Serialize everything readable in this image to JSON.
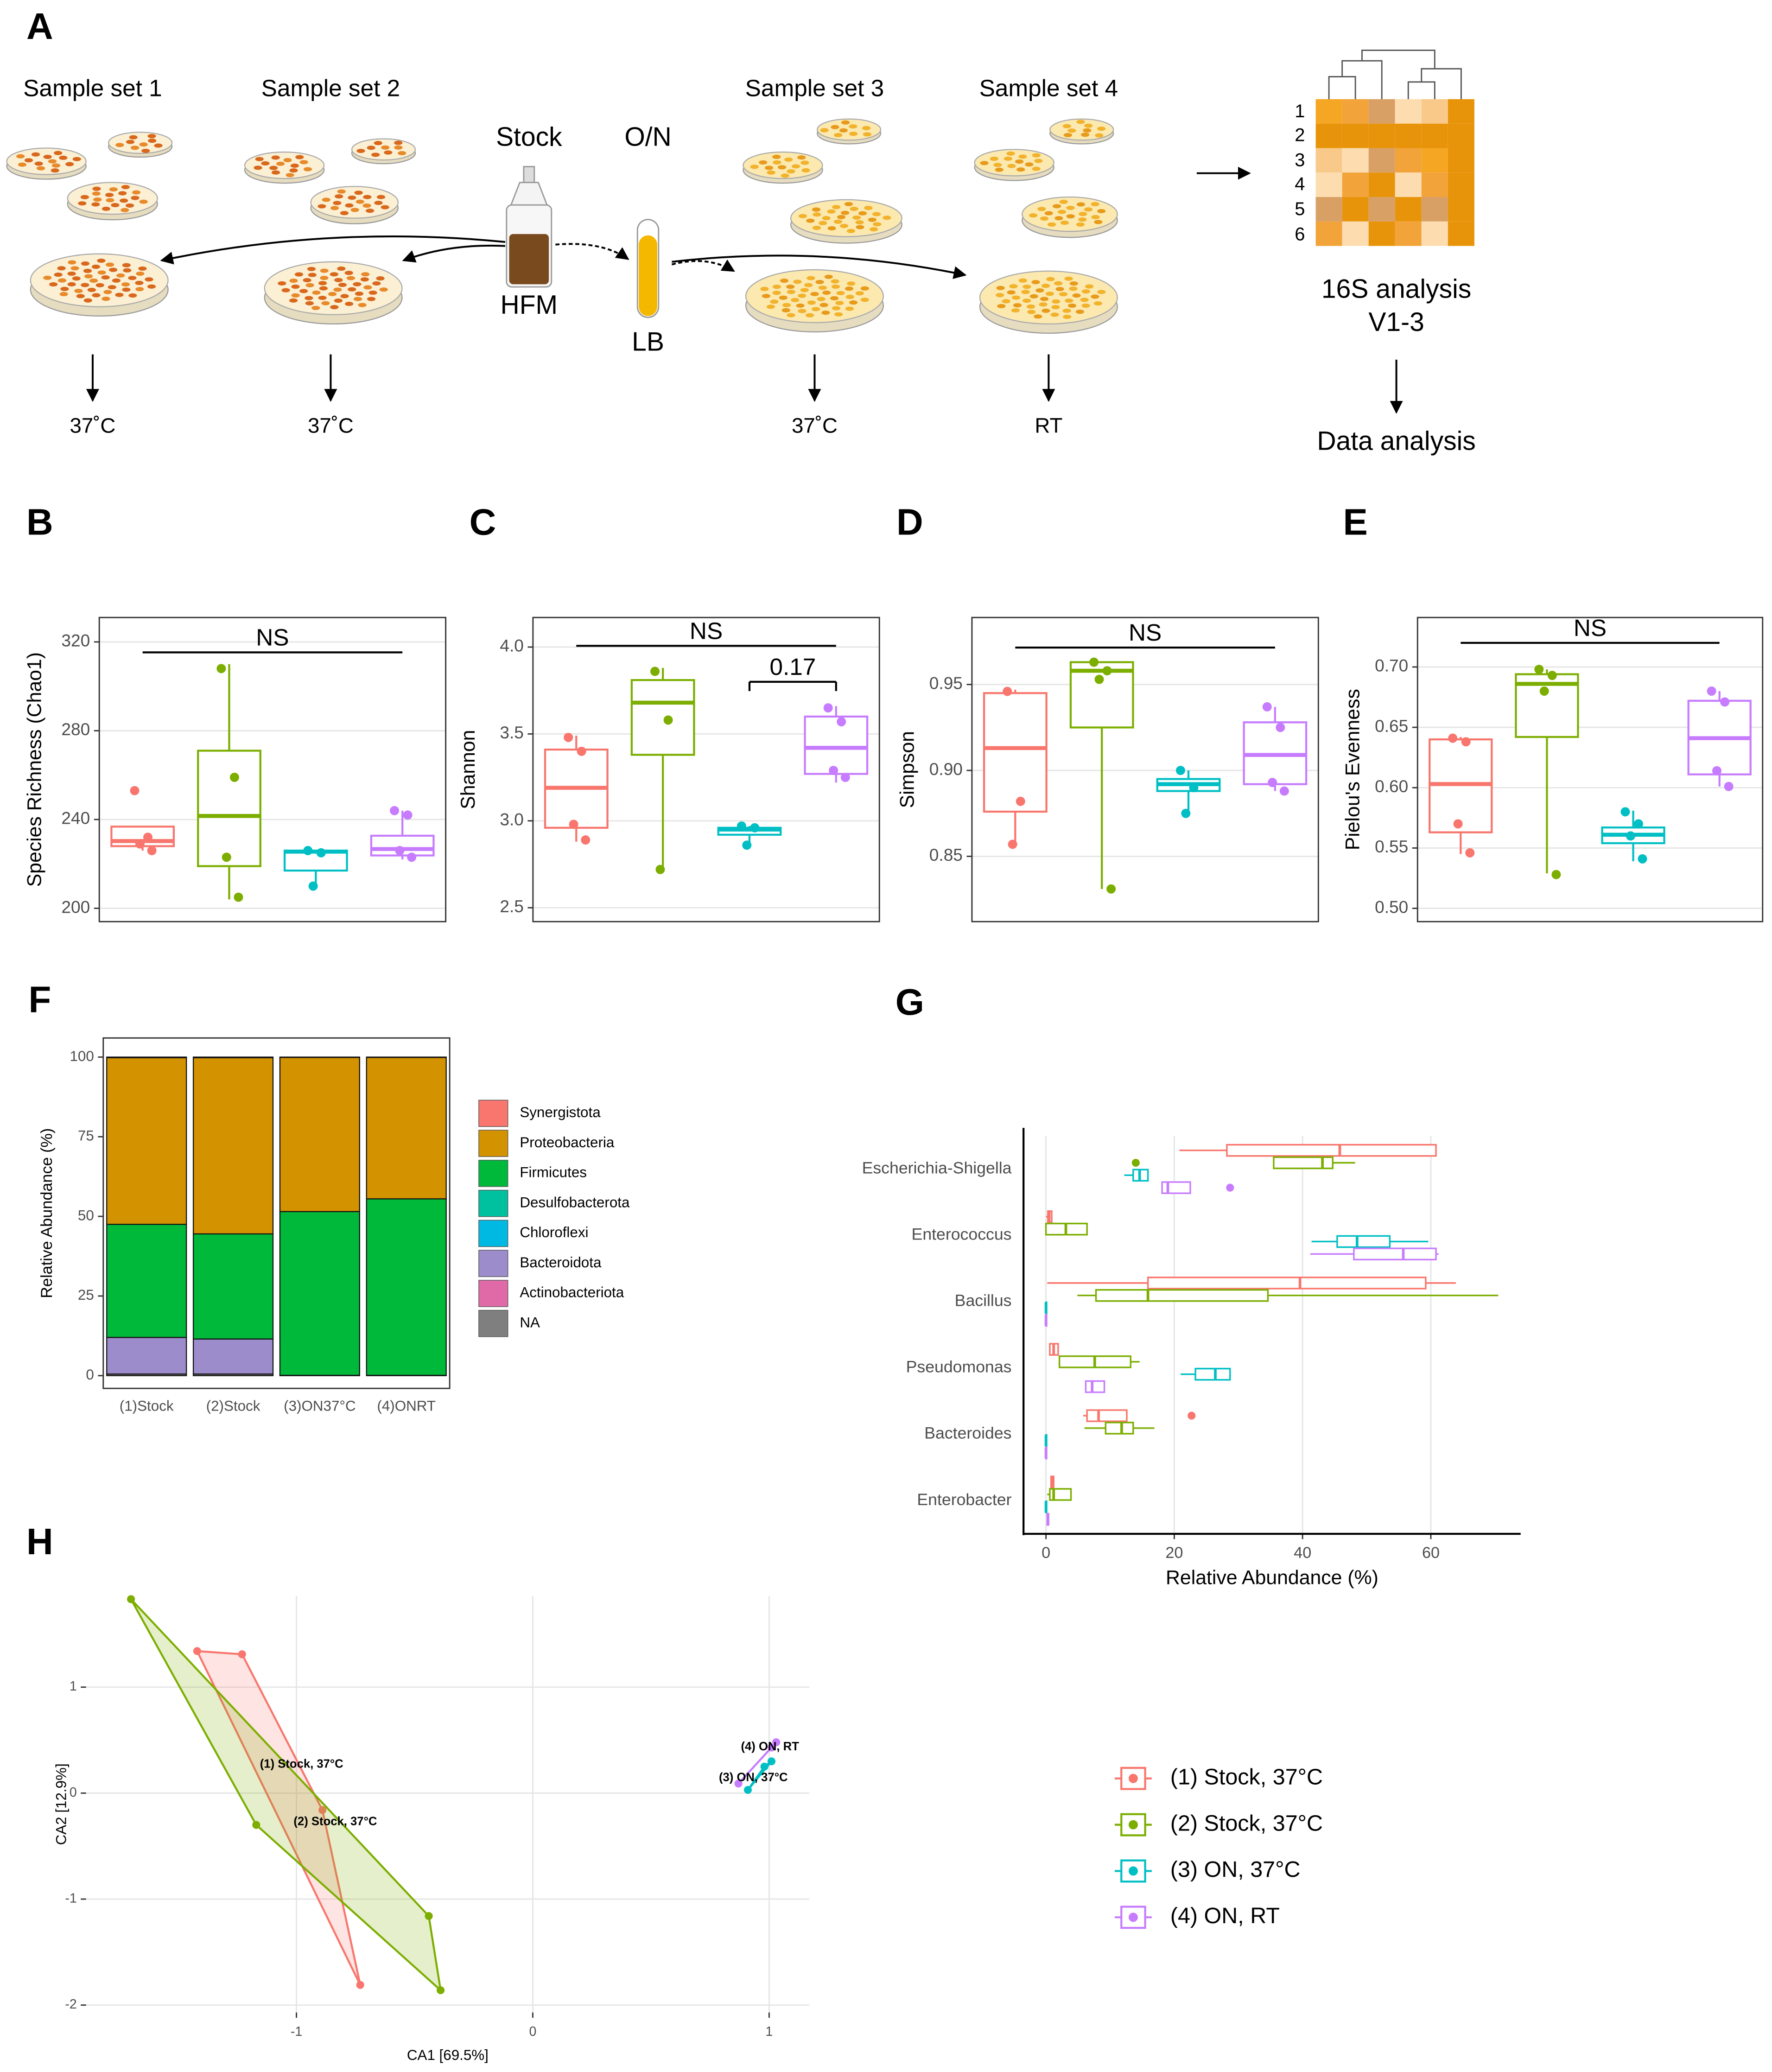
{
  "schematic": {
    "panel": "A",
    "sample_sets": [
      "Sample set 1",
      "Sample set 2",
      "Sample set 3",
      "Sample set 4"
    ],
    "stock": "Stock",
    "overnight": "O/N",
    "stock_medium": "HFM",
    "overnight_medium": "LB",
    "temperatures": [
      "37˚C",
      "37˚C",
      "37˚C",
      "RT"
    ],
    "analysis": "16S analysis",
    "region": "V1-3",
    "heatmap_rows": [
      "1",
      "2",
      "3",
      "4",
      "5",
      "6"
    ],
    "result": "Data analysis"
  },
  "chart_data": [
    {
      "type": "box",
      "panel": "B",
      "ylabel": "Species Richness (Chao1)",
      "ylim": [
        194,
        331
      ],
      "yticks": [
        200,
        240,
        280,
        320
      ],
      "grid": true,
      "series": [
        {
          "color": "#F8766D",
          "q1": 228,
          "median": 230.3,
          "q3": 236.8,
          "whislo": 226,
          "whishi": 237,
          "points": [
            253,
            232,
            229,
            226
          ]
        },
        {
          "color": "#7CAE00",
          "q1": 219,
          "median": 241.6,
          "q3": 271,
          "whislo": 204,
          "whishi": 310,
          "points": [
            308,
            259,
            223,
            205
          ]
        },
        {
          "color": "#00BFC4",
          "q1": 217,
          "median": 225.5,
          "q3": 226,
          "whislo": 209.5,
          "whishi": 226,
          "points": [
            226,
            225,
            210
          ]
        },
        {
          "color": "#C77CFF",
          "q1": 223.8,
          "median": 226.7,
          "q3": 232.7,
          "whislo": 222,
          "whishi": 244,
          "points": [
            244,
            242,
            226,
            223
          ]
        }
      ],
      "annotations": [
        {
          "text": "NS",
          "y": 315.3
        }
      ]
    },
    {
      "type": "box",
      "panel": "C",
      "ylabel": "Shannon",
      "ylim": [
        2.42,
        4.17
      ],
      "yticks": [
        2.5,
        {
          "value": 3,
          "label": "3.0"
        },
        3.5,
        {
          "value": 4,
          "label": "4.0"
        }
      ],
      "grid": true,
      "series": [
        {
          "color": "#F8766D",
          "q1": 2.96,
          "median": 3.19,
          "q3": 3.41,
          "whislo": 2.88,
          "whishi": 3.49,
          "points": [
            3.48,
            3.4,
            2.98,
            2.89
          ]
        },
        {
          "color": "#7CAE00",
          "q1": 3.38,
          "median": 3.68,
          "q3": 3.81,
          "whislo": 2.73,
          "whishi": 3.88,
          "points": [
            3.86,
            3.58,
            2.72
          ]
        },
        {
          "color": "#00BFC4",
          "q1": 2.92,
          "median": 2.95,
          "q3": 2.96,
          "whislo": 2.86,
          "whishi": 2.97,
          "points": [
            2.97,
            2.96,
            2.86
          ]
        },
        {
          "color": "#C77CFF",
          "q1": 3.27,
          "median": 3.42,
          "q3": 3.6,
          "whislo": 3.22,
          "whishi": 3.66,
          "points": [
            3.65,
            3.57,
            3.29,
            3.25
          ]
        }
      ],
      "annotations": [
        {
          "text": "NS",
          "y": 4.007
        },
        {
          "text": "0.17",
          "y": 3.8
        }
      ]
    },
    {
      "type": "box",
      "panel": "D",
      "ylabel": "Simpson",
      "ylim": [
        0.812,
        0.989
      ],
      "yticks": [
        0.85,
        {
          "value": 0.9,
          "label": "0.90"
        },
        0.95
      ],
      "grid": true,
      "series": [
        {
          "color": "#F8766D",
          "q1": 0.876,
          "median": 0.913,
          "q3": 0.945,
          "whislo": 0.857,
          "whishi": 0.947,
          "points": [
            0.946,
            0.882,
            0.857
          ]
        },
        {
          "color": "#7CAE00",
          "q1": 0.925,
          "median": 0.958,
          "q3": 0.963,
          "whislo": 0.831,
          "whishi": 0.963,
          "points": [
            0.963,
            0.958,
            0.953,
            0.831
          ]
        },
        {
          "color": "#00BFC4",
          "q1": 0.888,
          "median": 0.892,
          "q3": 0.895,
          "whislo": 0.875,
          "whishi": 0.9,
          "points": [
            0.9,
            0.89,
            0.875
          ]
        },
        {
          "color": "#C77CFF",
          "q1": 0.892,
          "median": 0.909,
          "q3": 0.928,
          "whislo": 0.888,
          "whishi": 0.937,
          "points": [
            0.937,
            0.925,
            0.893,
            0.888
          ]
        }
      ],
      "annotations": [
        {
          "text": "NS",
          "y": 0.9715
        }
      ]
    },
    {
      "type": "box",
      "panel": "E",
      "ylabel": "Pielou's Evenness",
      "ylim": [
        0.489,
        0.741
      ],
      "yticks": [
        {
          "value": 0.5,
          "label": "0.50"
        },
        0.55,
        {
          "value": 0.6,
          "label": "0.60"
        },
        0.65,
        {
          "value": 0.7,
          "label": "0.70"
        }
      ],
      "grid": true,
      "series": [
        {
          "color": "#F8766D",
          "q1": 0.563,
          "median": 0.603,
          "q3": 0.64,
          "whislo": 0.545,
          "whishi": 0.642,
          "points": [
            0.641,
            0.638,
            0.57,
            0.546
          ]
        },
        {
          "color": "#7CAE00",
          "q1": 0.642,
          "median": 0.686,
          "q3": 0.694,
          "whislo": 0.529,
          "whishi": 0.698,
          "points": [
            0.698,
            0.693,
            0.68,
            0.528
          ]
        },
        {
          "color": "#00BFC4",
          "q1": 0.554,
          "median": 0.561,
          "q3": 0.567,
          "whislo": 0.539,
          "whishi": 0.581,
          "points": [
            0.58,
            0.57,
            0.56,
            0.541
          ]
        },
        {
          "color": "#C77CFF",
          "q1": 0.611,
          "median": 0.641,
          "q3": 0.672,
          "whislo": 0.601,
          "whishi": 0.68,
          "points": [
            0.68,
            0.671,
            0.614,
            0.601
          ]
        }
      ],
      "annotations": [
        {
          "text": "NS",
          "y": 0.72
        }
      ]
    },
    {
      "type": "bar",
      "stacked": true,
      "panel": "F",
      "ylabel": "Relative Abundance (%)",
      "ylim": [
        -4,
        106
      ],
      "yticks": [
        0,
        25,
        50,
        75,
        100
      ],
      "categories": [
        "(1)Stock",
        "(2)Stock",
        "(3)ON37°C",
        "(4)ONRT"
      ],
      "series": [
        {
          "name": "Synergistota",
          "color": "#F8766D",
          "values": [
            0.2,
            0.2,
            0.1,
            0.1
          ]
        },
        {
          "name": "Proteobacteria",
          "color": "#D39200",
          "values": [
            52.3,
            55.3,
            48.4,
            44.4
          ]
        },
        {
          "name": "Firmicutes",
          "color": "#00B83A",
          "values": [
            35.5,
            33,
            51.4,
            55.4
          ]
        },
        {
          "name": "Desulfobacterota",
          "color": "#00C19F",
          "values": [
            0,
            0,
            0,
            0
          ]
        },
        {
          "name": "Chloroflexi",
          "color": "#00B9E3",
          "values": [
            0,
            0,
            0,
            0
          ]
        },
        {
          "name": "Bacteroidota",
          "color": "#9D8CCB",
          "values": [
            11.5,
            11,
            0,
            0
          ]
        },
        {
          "name": "Actinobacteriota",
          "color": "#E06AA8",
          "values": [
            0,
            0,
            0,
            0
          ]
        },
        {
          "name": "NA",
          "color": "#7F7F7F",
          "values": [
            0.5,
            0.5,
            0.1,
            0.1
          ]
        }
      ]
    },
    {
      "type": "box",
      "horizontal": true,
      "panel": "G",
      "xlabel": "Relative Abundance (%)",
      "xlim": [
        -3.5,
        74
      ],
      "xticks": [
        0,
        20,
        40,
        60
      ],
      "grid": true,
      "categories": [
        "Escherichia-Shigella",
        "Enterococcus",
        "Bacillus",
        "Pseudomonas",
        "Bacteroides",
        "Enterobacter"
      ],
      "series": [
        {
          "name": "(1) Stock, 37°C",
          "color": "#F8766D",
          "q1": [
            28.2,
            0.3,
            15.9,
            0.6,
            6.4,
            0.8
          ],
          "median": [
            45.8,
            0.5,
            39.6,
            1.2,
            8.2,
            1.0
          ],
          "q3": [
            60.8,
            0.9,
            59.2,
            1.9,
            12.6,
            1.2
          ],
          "whislo": [
            20.8,
            0,
            0.2,
            0.6,
            5.8,
            0.8
          ],
          "whishi": [
            60.8,
            1.0,
            63.9,
            1.9,
            12.6,
            1.2
          ],
          "outliers": [
            [],
            [],
            [],
            [],
            [
              22.7
            ],
            []
          ]
        },
        {
          "name": "(2) Stock, 37°C",
          "color": "#7CAE00",
          "q1": [
            35.5,
            0,
            7.8,
            2.1,
            9.3,
            0.6
          ],
          "median": [
            43.1,
            3.1,
            15.9,
            7.6,
            11.8,
            1.2
          ],
          "q3": [
            44.7,
            6.4,
            34.6,
            13.2,
            13.6,
            3.9
          ],
          "whislo": [
            35.5,
            0,
            4.9,
            2.1,
            6.0,
            0.2
          ],
          "whishi": [
            48.2,
            6.4,
            70.5,
            14.6,
            16.9,
            3.9
          ],
          "outliers": [
            [
              14.0
            ],
            [],
            [],
            [],
            [],
            []
          ]
        },
        {
          "name": "(3) ON, 37°C",
          "color": "#00BFC4",
          "q1": [
            13.6,
            45.4,
            0,
            23.3,
            0,
            0
          ],
          "median": [
            14.6,
            48.5,
            0,
            26.4,
            0,
            0
          ],
          "q3": [
            15.9,
            53.6,
            0.1,
            28.7,
            0.1,
            0.1
          ],
          "whislo": [
            12.2,
            41.4,
            0,
            21.0,
            0,
            0
          ],
          "whishi": [
            15.9,
            59.6,
            0.1,
            28.7,
            0.1,
            0.1
          ],
          "outliers": [
            [],
            [],
            [],
            [],
            [],
            []
          ]
        },
        {
          "name": "(4) ON, RT",
          "color": "#C77CFF",
          "q1": [
            18.1,
            48.0,
            0,
            6.2,
            0,
            0.2
          ],
          "median": [
            19.0,
            55.7,
            0,
            7.2,
            0,
            0.3
          ],
          "q3": [
            22.5,
            60.8,
            0.1,
            9.1,
            0.1,
            0.4
          ],
          "whislo": [
            18.1,
            41.2,
            0,
            6.2,
            0,
            0.2
          ],
          "whishi": [
            22.5,
            61.2,
            0.1,
            9.1,
            0.1,
            0.4
          ],
          "outliers": [
            [
              28.7
            ],
            [],
            [],
            [],
            [],
            []
          ]
        }
      ]
    },
    {
      "type": "scatter",
      "panel": "H",
      "xlabel": "CA1 [69.5%]",
      "ylabel": "CA2 [12.9%]",
      "xlim": [
        -1.89,
        1.17
      ],
      "ylim": [
        -2.07,
        1.86
      ],
      "xticks": [
        -1,
        0,
        1
      ],
      "yticks": [
        -2,
        -1,
        0,
        1
      ],
      "grid": true,
      "series": [
        {
          "name": "(1) Stock, 37°C",
          "color": "#F8766D",
          "x": [
            -1.42,
            -1.23,
            -0.89,
            -0.73
          ],
          "y": [
            1.34,
            1.31,
            -0.16,
            -1.81
          ]
        },
        {
          "name": "(2) Stock, 37°C",
          "color": "#7CAE00",
          "x": [
            -1.7,
            -0.44,
            -0.39,
            -1.17
          ],
          "y": [
            1.83,
            -1.16,
            -1.86,
            -0.3
          ]
        },
        {
          "name": "(3) ON, 37°C",
          "color": "#00BFC4",
          "x": [
            0.91,
            1.01,
            0.98
          ],
          "y": [
            0.03,
            0.3,
            0.25
          ]
        },
        {
          "name": "(4) ON, RT",
          "color": "#C77CFF",
          "x": [
            0.87,
            1.03,
            1.01
          ],
          "y": [
            0.09,
            0.48,
            0.43
          ]
        }
      ]
    }
  ]
}
